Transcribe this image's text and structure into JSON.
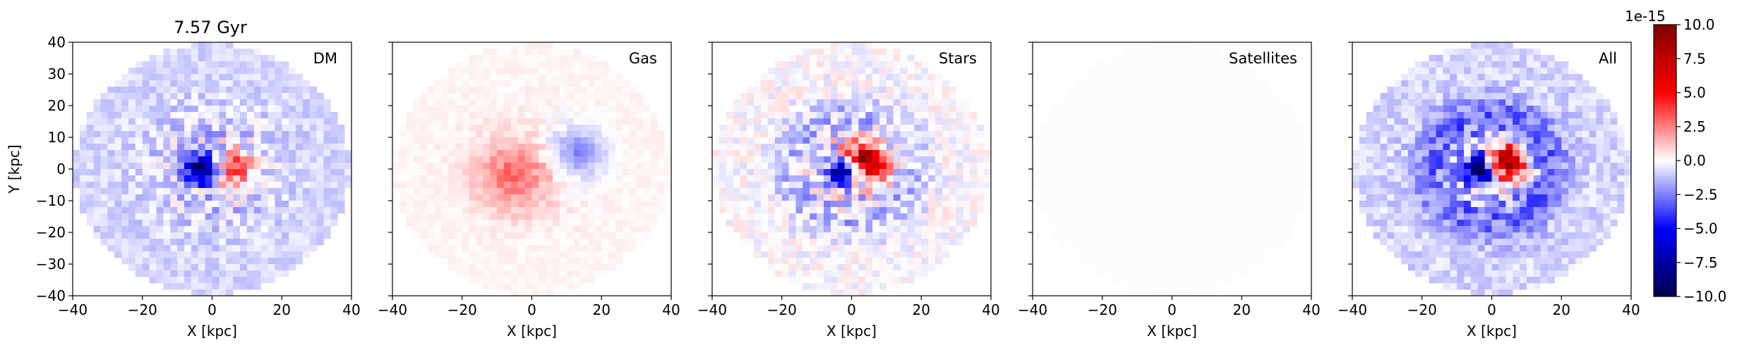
{
  "figure": {
    "time_label": "7.57 Gyr",
    "colorbar": {
      "multiplier": "1e-15",
      "ticks": [
        "10.0",
        "7.5",
        "5.0",
        "2.5",
        "0.0",
        "−2.5",
        "−5.0",
        "−7.5",
        "−10.0"
      ],
      "tick_values": [
        10.0,
        7.5,
        5.0,
        2.5,
        0.0,
        -2.5,
        -5.0,
        -7.5,
        -10.0
      ],
      "colormap": "seismic",
      "colors": {
        "neg": "#00004c",
        "mid": "#ffffff",
        "pos": "#800000"
      }
    }
  },
  "chart_data": [
    {
      "type": "heatmap",
      "title": "7.57 Gyr",
      "panel_label": "DM",
      "xlabel": "X [kpc]",
      "ylabel": "Y [kpc]",
      "xlim": [
        -40,
        40
      ],
      "ylim": [
        -40,
        40
      ],
      "xticks": [
        "−40",
        "−20",
        "0",
        "20",
        "40"
      ],
      "yticks": [
        "40",
        "30",
        "20",
        "10",
        "0",
        "−10",
        "−20",
        "−30",
        "−40"
      ],
      "vmin": -10,
      "vmax": 10,
      "scale_factor": "1e-15",
      "features": {
        "background": -0.8,
        "core_x": -3,
        "core_y": 0,
        "core_value": -9,
        "pos_lobe_x": 7,
        "pos_lobe_y": 0,
        "pos_lobe_value": 4,
        "noise": 2.5
      }
    },
    {
      "type": "heatmap",
      "panel_label": "Gas",
      "xlabel": "X [kpc]",
      "xlim": [
        -40,
        40
      ],
      "ylim": [
        -40,
        40
      ],
      "xticks": [
        "−40",
        "−20",
        "0",
        "20",
        "40"
      ],
      "vmin": -10,
      "vmax": 10,
      "scale_factor": "1e-15",
      "features": {
        "background": 0.2,
        "pos_region_x": -5,
        "pos_region_y": -2,
        "pos_value": 2.5,
        "neg_arc_x": 13,
        "neg_arc_y": 5,
        "neg_value": -2.5,
        "noise": 0.8
      }
    },
    {
      "type": "heatmap",
      "panel_label": "Stars",
      "xlabel": "X [kpc]",
      "xlim": [
        -40,
        40
      ],
      "ylim": [
        -40,
        40
      ],
      "xticks": [
        "−40",
        "−20",
        "0",
        "20",
        "40"
      ],
      "vmin": -10,
      "vmax": 10,
      "scale_factor": "1e-15",
      "features": {
        "background": 0.0,
        "core_x": -2,
        "core_y": -1,
        "core_value": -10,
        "pos_lobe_x": 4,
        "pos_lobe_y": 2,
        "pos_lobe_value": 9,
        "halo": -1.2,
        "noise": 3
      }
    },
    {
      "type": "heatmap",
      "panel_label": "Satellites",
      "xlabel": "X [kpc]",
      "xlim": [
        -40,
        40
      ],
      "ylim": [
        -40,
        40
      ],
      "xticks": [
        "−40",
        "−20",
        "0",
        "20",
        "40"
      ],
      "vmin": -10,
      "vmax": 10,
      "scale_factor": "1e-15",
      "features": {
        "background": -0.05,
        "noise": 0.0
      }
    },
    {
      "type": "heatmap",
      "panel_label": "All",
      "xlabel": "X [kpc]",
      "xlim": [
        -40,
        40
      ],
      "ylim": [
        -40,
        40
      ],
      "xticks": [
        "−40",
        "−20",
        "0",
        "20",
        "40"
      ],
      "vmin": -10,
      "vmax": 10,
      "scale_factor": "1e-15",
      "features": {
        "background": -0.8,
        "core_x": -3,
        "core_y": 0,
        "core_value": -10,
        "pos_lobe_x": 4,
        "pos_lobe_y": 2,
        "pos_lobe_value": 9,
        "halo": -2,
        "noise": 3
      }
    }
  ]
}
